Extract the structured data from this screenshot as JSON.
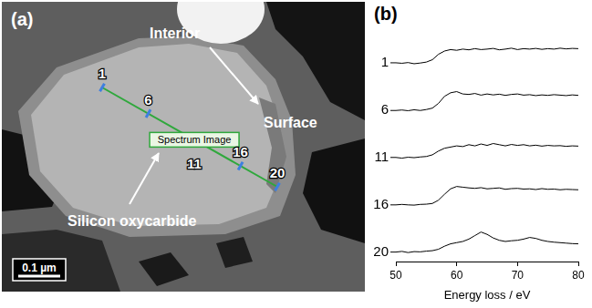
{
  "image_panel": {
    "panel_label": "(a)",
    "annotations": {
      "interior": "Interior",
      "surface": "Surface",
      "material": "Silicon oxycarbide",
      "spectrum_image": "Spectrum Image",
      "scale_bar": "0.1 µm"
    },
    "line_markers": [
      1,
      6,
      11,
      16,
      20
    ]
  },
  "chart_data": {
    "type": "line",
    "panel_label": "(b)",
    "x_label": "Energy loss / eV",
    "x": [
      50,
      51,
      52,
      53,
      54,
      55,
      56,
      57,
      58,
      59,
      60,
      61,
      62,
      63,
      64,
      65,
      66,
      67,
      68,
      69,
      70,
      71,
      72,
      73,
      74,
      75,
      76,
      77,
      78,
      79,
      80
    ],
    "xlim": [
      50,
      80
    ],
    "xticks": [
      50,
      60,
      70,
      80
    ],
    "ylim": [
      -0.4,
      1.6
    ],
    "tick_labels": "x",
    "grid": false,
    "series": [
      {
        "name": "20",
        "color": "#000000",
        "values": [
          0.0,
          0.03,
          -0.02,
          0.02,
          0.01,
          0.04,
          0.06,
          0.12,
          0.25,
          0.35,
          0.4,
          0.45,
          0.55,
          0.7,
          0.85,
          0.75,
          0.6,
          0.5,
          0.45,
          0.48,
          0.5,
          0.55,
          0.62,
          0.58,
          0.5,
          0.45,
          0.42,
          0.4,
          0.38,
          0.36,
          0.35
        ]
      },
      {
        "name": "16",
        "color": "#000000",
        "values": [
          0.0,
          0.02,
          0.0,
          -0.01,
          0.02,
          0.03,
          0.06,
          0.2,
          0.45,
          0.68,
          0.78,
          0.75,
          0.72,
          0.7,
          0.73,
          0.68,
          0.7,
          0.72,
          0.66,
          0.69,
          0.7,
          0.67,
          0.68,
          0.65,
          0.69,
          0.66,
          0.67,
          0.64,
          0.66,
          0.65,
          0.64
        ]
      },
      {
        "name": "11",
        "color": "#000000",
        "values": [
          0.01,
          -0.02,
          0.02,
          0.0,
          0.03,
          0.05,
          0.12,
          0.28,
          0.4,
          0.45,
          0.5,
          0.47,
          0.55,
          0.5,
          0.58,
          0.52,
          0.6,
          0.55,
          0.5,
          0.56,
          0.52,
          0.55,
          0.5,
          0.53,
          0.49,
          0.52,
          0.5,
          0.51,
          0.48,
          0.5,
          0.49
        ]
      },
      {
        "name": "6",
        "color": "#000000",
        "values": [
          0.0,
          0.02,
          -0.01,
          0.03,
          0.0,
          0.04,
          0.1,
          0.3,
          0.6,
          0.75,
          0.8,
          0.7,
          0.68,
          0.72,
          0.65,
          0.7,
          0.66,
          0.69,
          0.64,
          0.68,
          0.7,
          0.65,
          0.67,
          0.63,
          0.66,
          0.64,
          0.67,
          0.65,
          0.63,
          0.66,
          0.64
        ]
      },
      {
        "name": "1",
        "color": "#000000",
        "values": [
          0.02,
          0.0,
          0.03,
          -0.02,
          0.01,
          0.05,
          0.15,
          0.38,
          0.52,
          0.58,
          0.55,
          0.6,
          0.57,
          0.62,
          0.58,
          0.6,
          0.63,
          0.57,
          0.6,
          0.64,
          0.58,
          0.62,
          0.6,
          0.63,
          0.59,
          0.62,
          0.6,
          0.64,
          0.61,
          0.63,
          0.62
        ]
      }
    ]
  }
}
